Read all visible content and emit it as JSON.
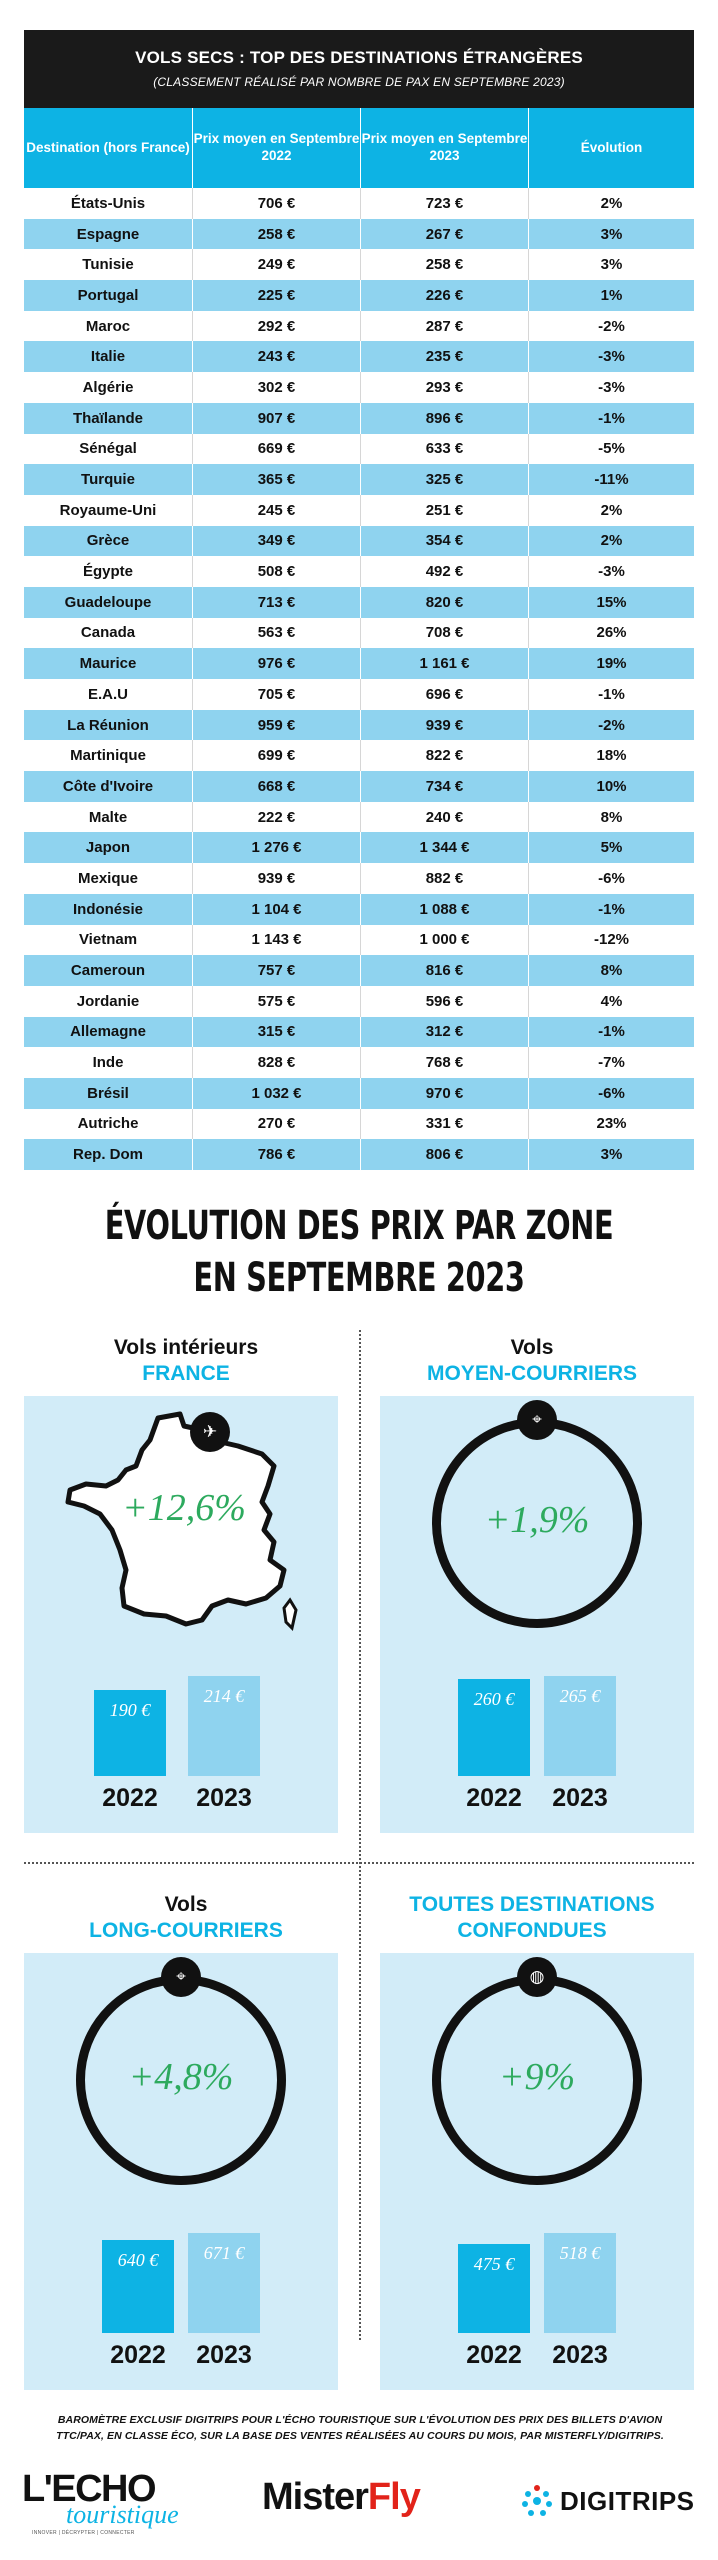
{
  "table": {
    "title": "VOLS SECS : TOP DES DESTINATIONS ÉTRANGÈRES",
    "subtitle": "(CLASSEMENT RÉALISÉ PAR NOMBRE DE PAX EN SEPTEMBRE 2023)",
    "columns": [
      "Destination (hors France)",
      "Prix moyen en Septembre 2022",
      "Prix moyen en Septembre 2023",
      "Évolution"
    ],
    "rows": [
      [
        "États-Unis",
        "706 €",
        "723 €",
        "2%"
      ],
      [
        "Espagne",
        "258 €",
        "267 €",
        "3%"
      ],
      [
        "Tunisie",
        "249 €",
        "258 €",
        "3%"
      ],
      [
        "Portugal",
        "225 €",
        "226 €",
        "1%"
      ],
      [
        "Maroc",
        "292 €",
        "287 €",
        "-2%"
      ],
      [
        "Italie",
        "243 €",
        "235 €",
        "-3%"
      ],
      [
        "Algérie",
        "302 €",
        "293 €",
        "-3%"
      ],
      [
        "Thaïlande",
        "907 €",
        "896 €",
        "-1%"
      ],
      [
        "Sénégal",
        "669 €",
        "633 €",
        "-5%"
      ],
      [
        "Turquie",
        "365 €",
        "325 €",
        "-11%"
      ],
      [
        "Royaume-Uni",
        "245 €",
        "251 €",
        "2%"
      ],
      [
        "Grèce",
        "349 €",
        "354 €",
        "2%"
      ],
      [
        "Égypte",
        "508 €",
        "492 €",
        "-3%"
      ],
      [
        "Guadeloupe",
        "713 €",
        "820 €",
        "15%"
      ],
      [
        "Canada",
        "563 €",
        "708 €",
        "26%"
      ],
      [
        "Maurice",
        "976 €",
        "1 161 €",
        "19%"
      ],
      [
        "E.A.U",
        "705 €",
        "696 €",
        "-1%"
      ],
      [
        "La Réunion",
        "959 €",
        "939 €",
        "-2%"
      ],
      [
        "Martinique",
        "699 €",
        "822 €",
        "18%"
      ],
      [
        "Côte d'Ivoire",
        "668 €",
        "734 €",
        "10%"
      ],
      [
        "Malte",
        "222 €",
        "240 €",
        "8%"
      ],
      [
        "Japon",
        "1 276 €",
        "1 344 €",
        "5%"
      ],
      [
        "Mexique",
        "939 €",
        "882 €",
        "-6%"
      ],
      [
        "Indonésie",
        "1 104 €",
        "1 088 €",
        "-1%"
      ],
      [
        "Vietnam",
        "1 143 €",
        "1 000 €",
        "-12%"
      ],
      [
        "Cameroun",
        "757 €",
        "816 €",
        "8%"
      ],
      [
        "Jordanie",
        "575 €",
        "596 €",
        "4%"
      ],
      [
        "Allemagne",
        "315 €",
        "312 €",
        "-1%"
      ],
      [
        "Inde",
        "828 €",
        "768 €",
        "-7%"
      ],
      [
        "Brésil",
        "1 032 €",
        "970 €",
        "-6%"
      ],
      [
        "Autriche",
        "270 €",
        "331 €",
        "23%"
      ],
      [
        "Rep. Dom",
        "786 €",
        "806 €",
        "3%"
      ]
    ]
  },
  "section": {
    "title_line1": "ÉVOLUTION DES PRIX PAR ZONE",
    "title_line2": "EN SEPTEMBRE 2023"
  },
  "chart_data": [
    {
      "type": "table",
      "title": "VOLS SECS : TOP DES DESTINATIONS ÉTRANGÈRES",
      "subtitle": "(CLASSEMENT RÉALISÉ PAR NOMBRE DE PAX EN SEPTEMBRE 2023)",
      "columns": [
        "Destination (hors France)",
        "Prix moyen en Septembre 2022",
        "Prix moyen en Septembre 2023",
        "Évolution"
      ]
    },
    {
      "type": "bar",
      "title_line1": "Vols intérieurs",
      "title_line2": "FRANCE",
      "evolution": "+12,6%",
      "categories": [
        "2022",
        "2023"
      ],
      "values": [
        190,
        214
      ],
      "value_labels": [
        "190 €",
        "214 €"
      ],
      "icon": "plane-icon"
    },
    {
      "type": "bar",
      "title_line1": "Vols",
      "title_line2": "MOYEN-COURRIERS",
      "evolution": "+1,9%",
      "categories": [
        "2022",
        "2023"
      ],
      "values": [
        260,
        265
      ],
      "value_labels": [
        "260 €",
        "265 €"
      ],
      "icon": "route-pins-icon"
    },
    {
      "type": "bar",
      "title_line1": "Vols",
      "title_line2": "LONG-COURRIERS",
      "evolution": "+4,8%",
      "categories": [
        "2022",
        "2023"
      ],
      "values": [
        640,
        671
      ],
      "value_labels": [
        "640 €",
        "671 €"
      ],
      "icon": "route-pins-icon"
    },
    {
      "type": "bar",
      "title_line1": "TOUTES DESTINATIONS",
      "title_line2": "CONFONDUES",
      "evolution": "+9%",
      "categories": [
        "2022",
        "2023"
      ],
      "values": [
        475,
        518
      ],
      "value_labels": [
        "475 €",
        "518 €"
      ],
      "icon": "globe-icon"
    }
  ],
  "footer": {
    "note_line1": "BAROMÈTRE EXCLUSIF DIGITRIPS POUR L'ÉCHO TOURISTIQUE SUR L'ÉVOLUTION DES PRIX DES BILLETS D'AVION",
    "note_line2": "TTC/PAX, EN CLASSE ÉCO, SUR LA BASE DES VENTES RÉALISÉES AU COURS DU MOIS, PAR MISTERFLY/DIGITRIPS.",
    "logo1_top": "L'ECHO",
    "logo1_bottom": "touristique",
    "logo1_tagline": "INNOVER | DÉCRYPTER | CONNECTER",
    "logo2_part1": "Mister",
    "logo2_part2": "Fly",
    "logo3": "DIGITRIPS"
  },
  "colors": {
    "accent_blue": "#0db3e4",
    "light_blue": "#8fd3ef",
    "panel_bg": "#d2ecf8",
    "green": "#2daa5e",
    "misterfly_red": "#e2231a"
  }
}
